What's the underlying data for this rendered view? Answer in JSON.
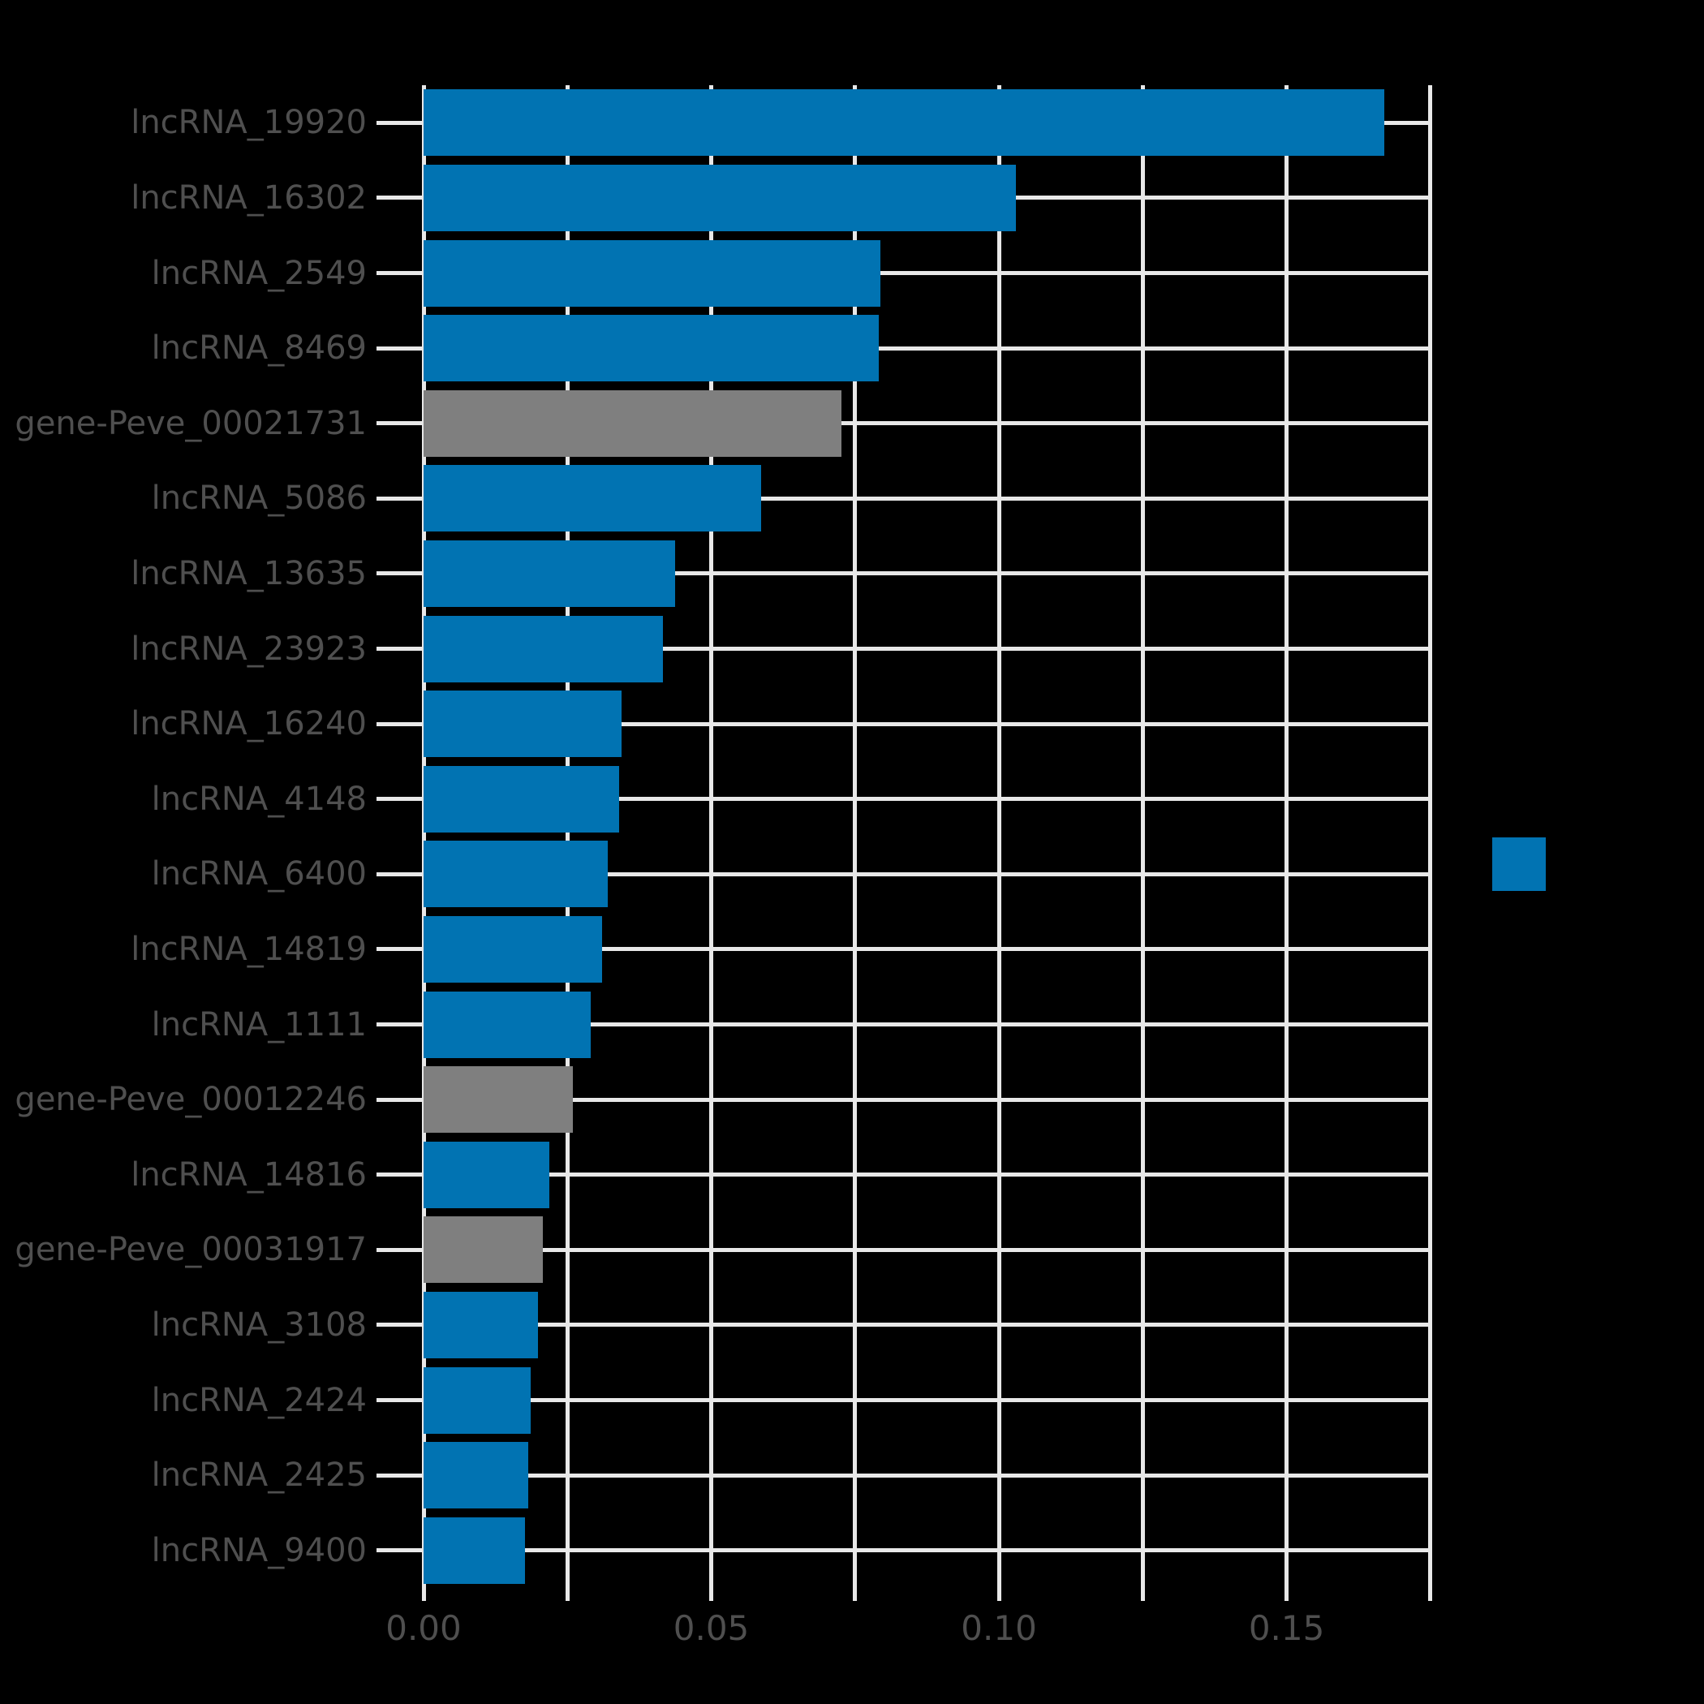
{
  "style": {
    "background_color": "#000000",
    "grid_color": "#e8e8e8",
    "tick_label_color": "#4f4f4f"
  },
  "legend": {
    "swatch_color": "#0173b2",
    "label": ""
  },
  "chart_data": {
    "type": "bar",
    "orientation": "horizontal",
    "title": "",
    "xlabel": "",
    "ylabel": "",
    "xlim": [
      0,
      0.1753
    ],
    "x_grid_interval": 0.025,
    "x_major_ticks": [
      0.0,
      0.05,
      0.1,
      0.15
    ],
    "x_major_tick_labels": [
      "0.00",
      "0.05",
      "0.10",
      "0.15"
    ],
    "grid": true,
    "legend_position": "center right",
    "categories": [
      "lncRNA_19920",
      "lncRNA_16302",
      "lncRNA_2549",
      "lncRNA_8469",
      "gene-Peve_00021731",
      "lncRNA_5086",
      "lncRNA_13635",
      "lncRNA_23923",
      "lncRNA_16240",
      "lncRNA_4148",
      "lncRNA_6400",
      "lncRNA_14819",
      "lncRNA_1111",
      "gene-Peve_00012246",
      "lncRNA_14816",
      "gene-Peve_00031917",
      "lncRNA_3108",
      "lncRNA_2424",
      "lncRNA_2425",
      "lncRNA_9400"
    ],
    "values": [
      0.167,
      0.1029,
      0.0794,
      0.0791,
      0.0726,
      0.0587,
      0.0437,
      0.0416,
      0.0344,
      0.034,
      0.032,
      0.031,
      0.029,
      0.0259,
      0.0219,
      0.0207,
      0.0199,
      0.0186,
      0.0182,
      0.0176
    ],
    "bar_colors": [
      "#0173b2",
      "#0173b2",
      "#0173b2",
      "#0173b2",
      "#7f7f7f",
      "#0173b2",
      "#0173b2",
      "#0173b2",
      "#0173b2",
      "#0173b2",
      "#0173b2",
      "#0173b2",
      "#0173b2",
      "#7f7f7f",
      "#0173b2",
      "#7f7f7f",
      "#0173b2",
      "#0173b2",
      "#0173b2",
      "#0173b2"
    ]
  }
}
